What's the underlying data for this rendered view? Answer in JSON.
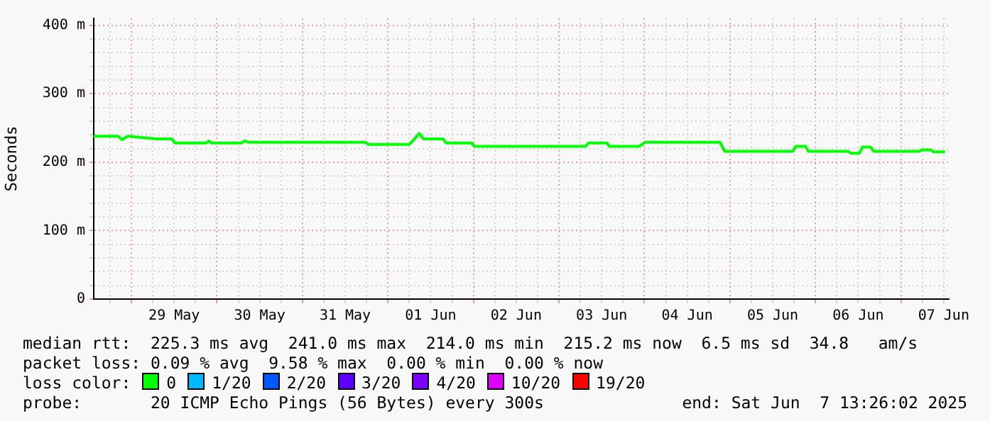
{
  "chart_data": {
    "type": "line",
    "ylabel": "Seconds",
    "legend": "bottom",
    "legend_title": "loss color:",
    "grid": true,
    "marker": "none",
    "ylim": [
      0,
      410
    ],
    "yticks": [
      {
        "value": 0,
        "label": "0"
      },
      {
        "value": 20,
        "label": null
      },
      {
        "value": 40,
        "label": null
      },
      {
        "value": 60,
        "label": null
      },
      {
        "value": 80,
        "label": null
      },
      {
        "value": 100,
        "label": "100 m"
      },
      {
        "value": 120,
        "label": null
      },
      {
        "value": 140,
        "label": null
      },
      {
        "value": 160,
        "label": null
      },
      {
        "value": 180,
        "label": null
      },
      {
        "value": 200,
        "label": "200 m"
      },
      {
        "value": 220,
        "label": null
      },
      {
        "value": 240,
        "label": null
      },
      {
        "value": 260,
        "label": null
      },
      {
        "value": 280,
        "label": null
      },
      {
        "value": 300,
        "label": "300 m"
      },
      {
        "value": 320,
        "label": null
      },
      {
        "value": 340,
        "label": null
      },
      {
        "value": 360,
        "label": null
      },
      {
        "value": 380,
        "label": null
      },
      {
        "value": 400,
        "label": "400 m"
      }
    ],
    "xlim": [
      "2025-05-28T13:26",
      "2025-06-07T13:26"
    ],
    "xticks": [
      {
        "value": "2025-05-28T18:00",
        "label": null
      },
      {
        "value": "2025-05-29T00:00",
        "label": null
      },
      {
        "value": "2025-05-29T06:00",
        "label": null
      },
      {
        "value": "2025-05-29T12:00",
        "label": "29 May"
      },
      {
        "value": "2025-05-29T18:00",
        "label": null
      },
      {
        "value": "2025-05-30T00:00",
        "label": null
      },
      {
        "value": "2025-05-30T06:00",
        "label": null
      },
      {
        "value": "2025-05-30T12:00",
        "label": "30 May"
      },
      {
        "value": "2025-05-30T18:00",
        "label": null
      },
      {
        "value": "2025-05-31T00:00",
        "label": null
      },
      {
        "value": "2025-05-31T06:00",
        "label": null
      },
      {
        "value": "2025-05-31T12:00",
        "label": "31 May"
      },
      {
        "value": "2025-05-31T18:00",
        "label": null
      },
      {
        "value": "2025-06-01T00:00",
        "label": null
      },
      {
        "value": "2025-06-01T06:00",
        "label": null
      },
      {
        "value": "2025-06-01T12:00",
        "label": "01 Jun"
      },
      {
        "value": "2025-06-01T18:00",
        "label": null
      },
      {
        "value": "2025-06-02T00:00",
        "label": null
      },
      {
        "value": "2025-06-02T06:00",
        "label": null
      },
      {
        "value": "2025-06-02T12:00",
        "label": "02 Jun"
      },
      {
        "value": "2025-06-02T18:00",
        "label": null
      },
      {
        "value": "2025-06-03T00:00",
        "label": null
      },
      {
        "value": "2025-06-03T06:00",
        "label": null
      },
      {
        "value": "2025-06-03T12:00",
        "label": "03 Jun"
      },
      {
        "value": "2025-06-03T18:00",
        "label": null
      },
      {
        "value": "2025-06-04T00:00",
        "label": null
      },
      {
        "value": "2025-06-04T06:00",
        "label": null
      },
      {
        "value": "2025-06-04T12:00",
        "label": "04 Jun"
      },
      {
        "value": "2025-06-04T18:00",
        "label": null
      },
      {
        "value": "2025-06-05T00:00",
        "label": null
      },
      {
        "value": "2025-06-05T06:00",
        "label": null
      },
      {
        "value": "2025-06-05T12:00",
        "label": "05 Jun"
      },
      {
        "value": "2025-06-05T18:00",
        "label": null
      },
      {
        "value": "2025-06-06T00:00",
        "label": null
      },
      {
        "value": "2025-06-06T06:00",
        "label": null
      },
      {
        "value": "2025-06-06T12:00",
        "label": "06 Jun"
      },
      {
        "value": "2025-06-06T18:00",
        "label": null
      },
      {
        "value": "2025-06-07T00:00",
        "label": null
      },
      {
        "value": "2025-06-07T06:00",
        "label": null
      },
      {
        "value": "2025-06-07T12:00",
        "label": "07 Jun"
      }
    ],
    "x": [
      "2025-05-28T13:26",
      "2025-05-28T20:13",
      "2025-05-28T21:26",
      "2025-05-28T23:00",
      "2025-05-29T07:00",
      "2025-05-29T11:20",
      "2025-05-29T12:10",
      "2025-05-29T21:00",
      "2025-05-29T21:45",
      "2025-05-29T22:30",
      "2025-05-30T07:00",
      "2025-05-30T07:45",
      "2025-05-30T09:00",
      "2025-05-31T17:40",
      "2025-05-31T18:30",
      "2025-06-01T06:00",
      "2025-06-01T07:30",
      "2025-06-01T08:45",
      "2025-06-01T10:00",
      "2025-06-01T15:30",
      "2025-06-01T16:20",
      "2025-06-01T23:30",
      "2025-06-02T00:20",
      "2025-06-03T07:30",
      "2025-06-03T08:15",
      "2025-06-03T13:30",
      "2025-06-03T14:10",
      "2025-06-03T22:30",
      "2025-06-04T00:10",
      "2025-06-04T21:15",
      "2025-06-04T22:30",
      "2025-06-05T17:40",
      "2025-06-05T18:30",
      "2025-06-05T21:15",
      "2025-06-05T22:00",
      "2025-06-06T09:10",
      "2025-06-06T10:00",
      "2025-06-06T12:20",
      "2025-06-06T13:10",
      "2025-06-06T15:30",
      "2025-06-06T16:20",
      "2025-06-07T05:05",
      "2025-06-07T06:00",
      "2025-06-07T08:20",
      "2025-06-07T09:10",
      "2025-06-07T12:20"
    ],
    "series": [
      {
        "name": "0",
        "color": "#00ff00",
        "values": [
          238,
          238,
          233,
          238,
          234,
          234,
          228,
          228,
          231,
          228,
          228,
          231,
          229,
          229,
          226,
          226,
          234,
          242,
          234,
          234,
          228,
          228,
          223,
          223,
          228,
          228,
          223,
          223,
          229,
          229,
          216,
          216,
          223,
          223,
          216,
          216,
          213,
          213,
          222,
          222,
          216,
          216,
          218,
          218,
          215,
          215
        ]
      },
      {
        "name": "1/20",
        "color": "#00b8ff",
        "values": [
          null,
          null,
          null,
          null,
          null,
          null,
          null,
          null,
          null,
          null,
          null,
          null,
          null,
          null,
          null,
          null,
          null,
          null,
          null,
          null,
          null,
          null,
          null,
          null,
          null,
          null,
          null,
          null,
          null,
          null,
          null,
          null,
          null,
          null,
          null,
          null,
          null,
          null,
          null,
          null,
          null,
          null,
          null,
          null,
          null,
          null
        ]
      },
      {
        "name": "2/20",
        "color": "#0059ff",
        "values": [
          null,
          null,
          null,
          null,
          null,
          null,
          null,
          null,
          null,
          null,
          null,
          null,
          null,
          null,
          null,
          null,
          null,
          null,
          null,
          null,
          null,
          null,
          null,
          null,
          null,
          null,
          null,
          null,
          null,
          null,
          null,
          null,
          null,
          null,
          null,
          null,
          null,
          null,
          null,
          null,
          null,
          null,
          null,
          null,
          null,
          null
        ]
      },
      {
        "name": "3/20",
        "color": "#5e00ff",
        "values": [
          null,
          null,
          null,
          null,
          null,
          null,
          null,
          null,
          null,
          null,
          null,
          null,
          null,
          null,
          null,
          null,
          null,
          null,
          null,
          null,
          null,
          null,
          null,
          null,
          null,
          null,
          null,
          null,
          null,
          null,
          null,
          null,
          null,
          null,
          null,
          null,
          null,
          null,
          null,
          null,
          null,
          null,
          null,
          null,
          null,
          null
        ]
      },
      {
        "name": "4/20",
        "color": "#7e00ff",
        "values": [
          null,
          null,
          null,
          null,
          null,
          null,
          null,
          null,
          null,
          null,
          null,
          null,
          null,
          null,
          null,
          null,
          null,
          null,
          null,
          null,
          null,
          null,
          null,
          null,
          null,
          null,
          null,
          null,
          null,
          null,
          null,
          null,
          null,
          null,
          null,
          null,
          null,
          null,
          null,
          null,
          null,
          null,
          null,
          null,
          null,
          null
        ]
      },
      {
        "name": "10/20",
        "color": "#dd00ff",
        "values": [
          null,
          null,
          null,
          null,
          null,
          null,
          null,
          null,
          null,
          null,
          null,
          null,
          null,
          null,
          null,
          null,
          null,
          null,
          null,
          null,
          null,
          null,
          null,
          null,
          null,
          null,
          null,
          null,
          null,
          null,
          null,
          null,
          null,
          null,
          null,
          null,
          null,
          null,
          null,
          null,
          null,
          null,
          null,
          null,
          null,
          null
        ]
      },
      {
        "name": "19/20",
        "color": "#ff0000",
        "values": [
          null,
          null,
          null,
          null,
          null,
          null,
          null,
          null,
          null,
          null,
          null,
          null,
          null,
          null,
          null,
          null,
          null,
          null,
          null,
          null,
          null,
          null,
          null,
          null,
          null,
          null,
          null,
          null,
          null,
          null,
          null,
          null,
          null,
          null,
          null,
          null,
          null,
          null,
          null,
          null,
          null,
          null,
          null,
          null,
          null,
          null
        ]
      }
    ],
    "annotations": [
      "median rtt:  225.3 ms avg  241.0 ms max  214.0 ms min  215.2 ms now  6.5 ms sd  34.8   am/s",
      "packet loss: 0.09 % avg  9.58 % max  0.00 % min  0.00 % now",
      "probe:       20 ICMP Echo Pings (56 Bytes) every 300s",
      "end: Sat Jun  7 13:26:02 2025"
    ]
  }
}
